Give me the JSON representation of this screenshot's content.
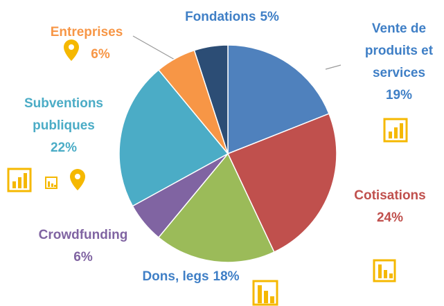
{
  "chart_data": {
    "type": "pie",
    "categories": [
      "Vente de produits et services",
      "Cotisations",
      "Dons, legs",
      "Crowdfunding",
      "Subventions publiques",
      "Entreprises",
      "Fondations"
    ],
    "values": [
      19,
      24,
      18,
      6,
      22,
      6,
      5
    ],
    "value_labels": [
      "19%",
      "24%",
      "18%",
      "6%",
      "22%",
      "6%",
      "5%"
    ],
    "colors": [
      "#4f81bd",
      "#c0504d",
      "#9bbb59",
      "#8064a2",
      "#4bacc6",
      "#f79646",
      "#2c4d75"
    ],
    "label_colors": [
      "#3f7fc6",
      "#c0504d",
      "#3f7fc6",
      "#8064a2",
      "#4bacc6",
      "#f79646",
      "#3f7fc6"
    ]
  }
}
